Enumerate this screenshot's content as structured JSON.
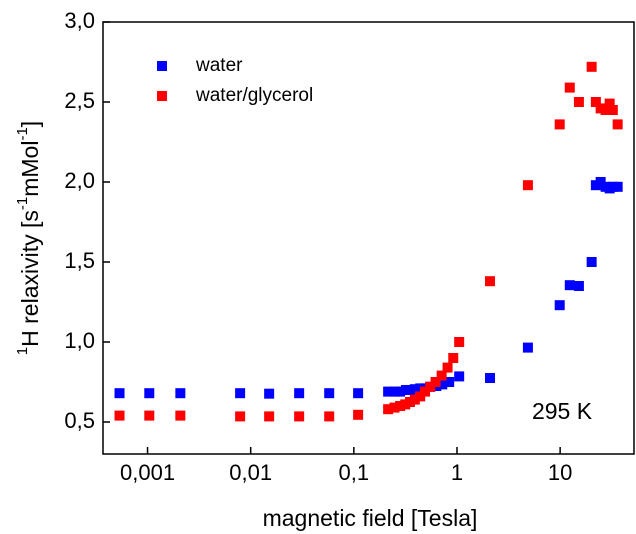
{
  "chart_data": {
    "type": "scatter",
    "xlabel": "magnetic field [Tesla]",
    "ylabel": [
      "1",
      "H relaxivity [s",
      "-1",
      "mMol",
      "-1",
      "]"
    ],
    "annotation": "295 K",
    "xscale": "log",
    "xlim": [
      0.00037,
      52
    ],
    "ylim": [
      0.3,
      3.0
    ],
    "xticks": [
      {
        "value": 0.001,
        "label": "0,001"
      },
      {
        "value": 0.01,
        "label": "0,01"
      },
      {
        "value": 0.1,
        "label": "0,1"
      },
      1,
      10
    ],
    "yticks": [
      {
        "value": 0.5,
        "label": "0,5"
      },
      {
        "value": 1.0,
        "label": "1,0"
      },
      {
        "value": 1.5,
        "label": "1,5"
      },
      {
        "value": 2.0,
        "label": "2,0"
      },
      {
        "value": 2.5,
        "label": "2,5"
      },
      {
        "value": 3.0,
        "label": "3,0"
      }
    ],
    "legend": "upper left",
    "series": [
      {
        "name": "water",
        "color": "#0000ff",
        "x": [
          0.000535,
          0.00104,
          0.00208,
          0.0079,
          0.0151,
          0.0295,
          0.0577,
          0.11,
          0.215,
          0.251,
          0.281,
          0.32,
          0.35,
          0.39,
          0.44,
          0.49,
          0.55,
          0.63,
          0.72,
          0.84,
          1.05,
          2.09,
          4.87,
          9.9,
          12.4,
          15.2,
          20.2,
          22.2,
          24.7,
          27.6,
          30.2,
          32.4,
          36.1
        ],
        "values": [
          0.68,
          0.68,
          0.68,
          0.68,
          0.677,
          0.68,
          0.68,
          0.68,
          0.69,
          0.69,
          0.69,
          0.7,
          0.7,
          0.705,
          0.71,
          0.71,
          0.72,
          0.725,
          0.735,
          0.75,
          0.785,
          0.775,
          0.965,
          1.23,
          1.355,
          1.35,
          1.5,
          1.98,
          2.0,
          1.97,
          1.96,
          1.97,
          1.97
        ]
      },
      {
        "name": "water/glycerol",
        "color": "#ff0000",
        "x": [
          0.000535,
          0.00104,
          0.00208,
          0.0079,
          0.0151,
          0.0295,
          0.0577,
          0.11,
          0.215,
          0.248,
          0.281,
          0.315,
          0.35,
          0.39,
          0.44,
          0.49,
          0.55,
          0.62,
          0.71,
          0.81,
          0.92,
          1.05,
          2.09,
          4.87,
          9.9,
          12.4,
          15.2,
          20.2,
          22.2,
          24.7,
          27.6,
          30.2,
          32.4,
          36.1
        ],
        "values": [
          0.54,
          0.54,
          0.54,
          0.535,
          0.535,
          0.535,
          0.535,
          0.545,
          0.58,
          0.59,
          0.6,
          0.61,
          0.625,
          0.64,
          0.66,
          0.69,
          0.72,
          0.75,
          0.79,
          0.84,
          0.9,
          1.0,
          1.38,
          1.98,
          2.36,
          2.59,
          2.5,
          2.72,
          2.5,
          2.46,
          2.45,
          2.49,
          2.45,
          2.36
        ]
      }
    ]
  }
}
